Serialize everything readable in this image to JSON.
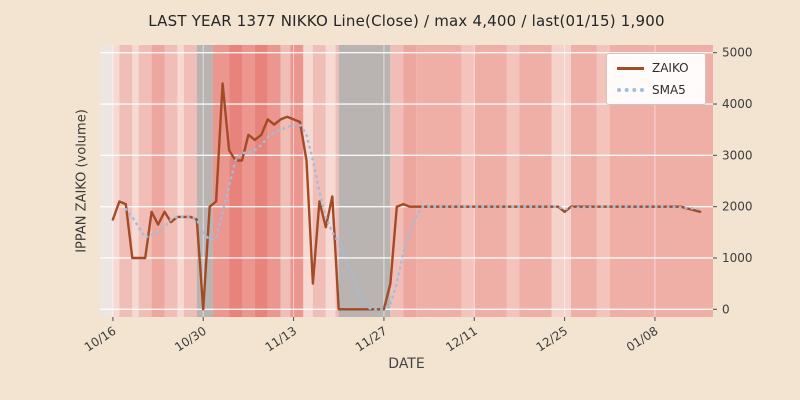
{
  "chart": {
    "title": "LAST YEAR 1377 NIKKO Line(Close) / max 4,400 / last(01/15) 1,900",
    "xlabel": "DATE",
    "ylabel": "IPPAN ZAIKO (volume)",
    "colors": {
      "background": "#f2e4d0",
      "grid": "#ffffff",
      "tick_text": "#3d3d3d"
    },
    "legend": [
      {
        "label": "ZAIKO",
        "style": "solid",
        "color": "#a24b24"
      },
      {
        "label": "SMA5",
        "style": "dotted",
        "color": "#9fbede"
      }
    ]
  },
  "chart_data": {
    "type": "line",
    "title": "LAST YEAR 1377 NIKKO Line(Close) / max 4,400 / last(01/15) 1,900",
    "xlabel": "DATE",
    "ylabel": "IPPAN ZAIKO (volume)",
    "x_unit": "days since 10/16",
    "xlim": [
      -2,
      93
    ],
    "ylim": [
      -150,
      5150
    ],
    "grid": true,
    "legend_position": "upper right",
    "x_ticks": [
      {
        "day": 0,
        "label": "10/16"
      },
      {
        "day": 14,
        "label": "10/30"
      },
      {
        "day": 28,
        "label": "11/13"
      },
      {
        "day": 42,
        "label": "11/27"
      },
      {
        "day": 56,
        "label": "12/11"
      },
      {
        "day": 70,
        "label": "12/25"
      },
      {
        "day": 84,
        "label": "01/08"
      }
    ],
    "y_ticks": [
      0,
      1000,
      2000,
      3000,
      4000,
      5000
    ],
    "max_value": 4400,
    "last_value": 1900,
    "last_date": "01/15",
    "bands": [
      [
        -2,
        0,
        "#ede5e1"
      ],
      [
        0,
        1,
        "#f7d9d4"
      ],
      [
        1,
        3,
        "#f1beb7"
      ],
      [
        3,
        4,
        "#f7d9d4"
      ],
      [
        4,
        6,
        "#f1beb7"
      ],
      [
        6,
        8,
        "#eda79f"
      ],
      [
        8,
        10,
        "#f1beb7"
      ],
      [
        10,
        11,
        "#f7d9d4"
      ],
      [
        11,
        13,
        "#f1beb7"
      ],
      [
        13,
        15.5,
        "#b9b4b2"
      ],
      [
        15.5,
        18,
        "#eb968e"
      ],
      [
        18,
        20,
        "#e8837b"
      ],
      [
        20,
        22,
        "#eb968e"
      ],
      [
        22,
        24,
        "#e8837b"
      ],
      [
        24,
        26,
        "#eb968e"
      ],
      [
        26,
        27.5,
        "#f1beb7"
      ],
      [
        27.5,
        29.5,
        "#eb968e"
      ],
      [
        29.5,
        31,
        "#f7d9d4"
      ],
      [
        31,
        33,
        "#f1beb7"
      ],
      [
        33,
        34.5,
        "#f7d9d4"
      ],
      [
        34.5,
        35,
        "#f1beb7"
      ],
      [
        35,
        43,
        "#b9b4b2"
      ],
      [
        43,
        45,
        "#f1beb7"
      ],
      [
        45,
        47,
        "#eda79f"
      ],
      [
        47,
        54,
        "#efaea6"
      ],
      [
        54,
        56,
        "#f3c3bc"
      ],
      [
        56,
        61,
        "#efaea6"
      ],
      [
        61,
        63,
        "#f3c3bc"
      ],
      [
        63,
        68,
        "#efaea6"
      ],
      [
        68,
        71,
        "#f6d2cc"
      ],
      [
        71,
        75,
        "#efaea6"
      ],
      [
        75,
        77,
        "#f3c3bc"
      ],
      [
        77,
        93,
        "#efaea6"
      ]
    ],
    "series": [
      {
        "name": "ZAIKO",
        "color": "#a24b24",
        "dash": "solid",
        "points": [
          [
            0,
            1750
          ],
          [
            1,
            2100
          ],
          [
            2,
            2050
          ],
          [
            3,
            1000
          ],
          [
            4,
            1000
          ],
          [
            5,
            1000
          ],
          [
            6,
            1900
          ],
          [
            7,
            1650
          ],
          [
            8,
            1900
          ],
          [
            9,
            1700
          ],
          [
            10,
            1800
          ],
          [
            11,
            1800
          ],
          [
            12,
            1800
          ],
          [
            13,
            1750
          ],
          [
            14,
            0
          ],
          [
            15,
            2000
          ],
          [
            16,
            2100
          ],
          [
            17,
            4400
          ],
          [
            18,
            3100
          ],
          [
            19,
            2900
          ],
          [
            20,
            2900
          ],
          [
            21,
            3400
          ],
          [
            22,
            3300
          ],
          [
            23,
            3400
          ],
          [
            24,
            3700
          ],
          [
            25,
            3600
          ],
          [
            26,
            3700
          ],
          [
            27,
            3750
          ],
          [
            28,
            3700
          ],
          [
            29,
            3650
          ],
          [
            30,
            2900
          ],
          [
            31,
            500
          ],
          [
            32,
            2100
          ],
          [
            33,
            1600
          ],
          [
            34,
            2200
          ],
          [
            35,
            0
          ],
          [
            38,
            0
          ],
          [
            40,
            0
          ],
          [
            42,
            0
          ],
          [
            43,
            500
          ],
          [
            44,
            2000
          ],
          [
            45,
            2050
          ],
          [
            46,
            2000
          ],
          [
            50,
            2000
          ],
          [
            55,
            2000
          ],
          [
            60,
            2000
          ],
          [
            65,
            2000
          ],
          [
            69,
            2000
          ],
          [
            70,
            1900
          ],
          [
            71,
            2000
          ],
          [
            75,
            2000
          ],
          [
            80,
            2000
          ],
          [
            85,
            2000
          ],
          [
            88,
            2000
          ],
          [
            91,
            1900
          ]
        ]
      },
      {
        "name": "SMA5",
        "color": "#9fbede",
        "dash": "dotted",
        "points": [
          [
            2,
            1950
          ],
          [
            3,
            1800
          ],
          [
            4,
            1600
          ],
          [
            5,
            1400
          ],
          [
            6,
            1450
          ],
          [
            7,
            1500
          ],
          [
            8,
            1600
          ],
          [
            9,
            1750
          ],
          [
            10,
            1800
          ],
          [
            11,
            1800
          ],
          [
            12,
            1800
          ],
          [
            13,
            1750
          ],
          [
            14,
            1500
          ],
          [
            15,
            1350
          ],
          [
            16,
            1400
          ],
          [
            17,
            1900
          ],
          [
            18,
            2400
          ],
          [
            19,
            2900
          ],
          [
            20,
            3050
          ],
          [
            21,
            3050
          ],
          [
            22,
            3100
          ],
          [
            23,
            3200
          ],
          [
            24,
            3350
          ],
          [
            25,
            3450
          ],
          [
            26,
            3500
          ],
          [
            27,
            3550
          ],
          [
            28,
            3600
          ],
          [
            29,
            3600
          ],
          [
            30,
            3400
          ],
          [
            31,
            2900
          ],
          [
            32,
            2300
          ],
          [
            33,
            1800
          ],
          [
            34,
            1500
          ],
          [
            35,
            1300
          ],
          [
            36,
            1000
          ],
          [
            37,
            700
          ],
          [
            38,
            400
          ],
          [
            39,
            100
          ],
          [
            40,
            0
          ],
          [
            41,
            0
          ],
          [
            42,
            0
          ],
          [
            43,
            100
          ],
          [
            44,
            500
          ],
          [
            45,
            1100
          ],
          [
            46,
            1500
          ],
          [
            47,
            1800
          ],
          [
            48,
            2000
          ],
          [
            50,
            2000
          ],
          [
            55,
            2000
          ],
          [
            60,
            2000
          ],
          [
            65,
            2000
          ],
          [
            69,
            2000
          ],
          [
            70,
            1950
          ],
          [
            71,
            1980
          ],
          [
            75,
            2000
          ],
          [
            80,
            2000
          ],
          [
            85,
            2000
          ],
          [
            88,
            1990
          ],
          [
            91,
            1950
          ]
        ]
      }
    ]
  }
}
